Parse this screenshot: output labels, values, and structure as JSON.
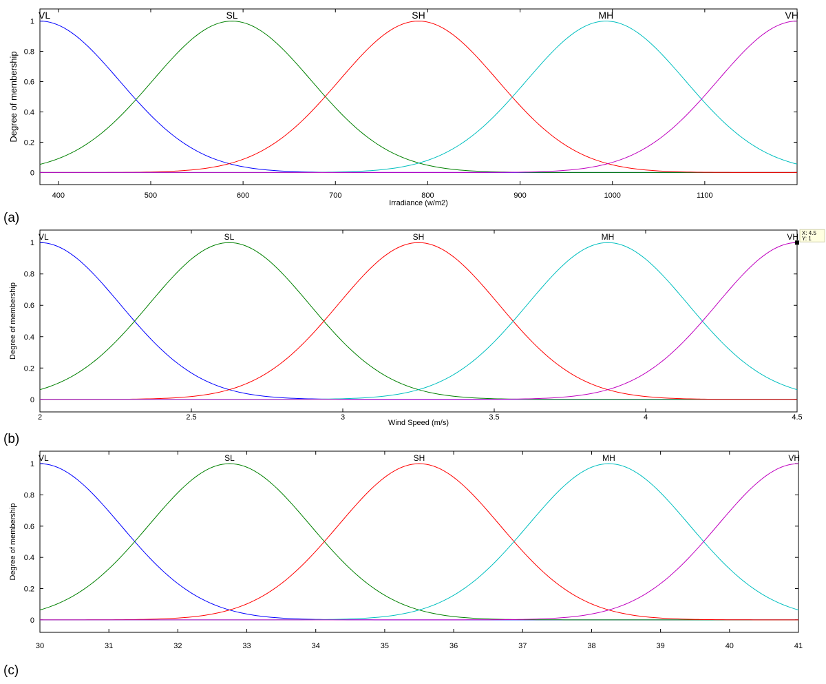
{
  "chart_data": [
    {
      "type": "line",
      "panel_label": "(a)",
      "xlabel": "Irradiance (w/m2)",
      "ylabel": "Degree of membership",
      "xlim": [
        380,
        1200
      ],
      "ylim": [
        -0.08,
        1.08
      ],
      "xticks": [
        400,
        500,
        600,
        700,
        800,
        900,
        1000,
        1100
      ],
      "yticks": [
        0,
        0.2,
        0.4,
        0.6,
        0.8,
        1
      ],
      "grid": false,
      "mf_type": "gaussian",
      "series": [
        {
          "name": "VL",
          "center": 380,
          "sigma": 86,
          "color": "#0000ff"
        },
        {
          "name": "SL",
          "center": 588,
          "sigma": 86,
          "color": "#008000"
        },
        {
          "name": "SH",
          "center": 790,
          "sigma": 86,
          "color": "#ff0000"
        },
        {
          "name": "MH",
          "center": 993,
          "sigma": 86,
          "color": "#00bfbf"
        },
        {
          "name": "VH",
          "center": 1200,
          "sigma": 86,
          "color": "#bf00bf"
        }
      ]
    },
    {
      "type": "line",
      "panel_label": "(b)",
      "xlabel": "Wind Speed (m/s)",
      "ylabel": "Degree of membership",
      "xlim": [
        2,
        4.5
      ],
      "ylim": [
        -0.08,
        1.08
      ],
      "xticks": [
        2,
        2.5,
        3,
        3.5,
        4,
        4.5
      ],
      "yticks": [
        0,
        0.2,
        0.4,
        0.6,
        0.8,
        1
      ],
      "grid": false,
      "mf_type": "gaussian",
      "series": [
        {
          "name": "VL",
          "center": 2,
          "sigma": 0.265,
          "color": "#0000ff"
        },
        {
          "name": "SL",
          "center": 2.625,
          "sigma": 0.265,
          "color": "#008000"
        },
        {
          "name": "SH",
          "center": 3.25,
          "sigma": 0.265,
          "color": "#ff0000"
        },
        {
          "name": "MH",
          "center": 3.875,
          "sigma": 0.265,
          "color": "#00bfbf"
        },
        {
          "name": "VH",
          "center": 4.5,
          "sigma": 0.265,
          "color": "#bf00bf"
        }
      ],
      "datatip": {
        "x": 4.5,
        "y": 1,
        "line1": "X: 4.5",
        "line2": "Y: 1"
      }
    },
    {
      "type": "line",
      "panel_label": "(c)",
      "xlabel": "",
      "ylabel": "Degree of membership",
      "xlim": [
        30,
        41
      ],
      "ylim": [
        -0.08,
        1.08
      ],
      "xticks": [
        30,
        31,
        32,
        33,
        34,
        35,
        36,
        37,
        38,
        39,
        40,
        41
      ],
      "yticks": [
        0,
        0.2,
        0.4,
        0.6,
        0.8,
        1
      ],
      "grid": false,
      "mf_type": "gaussian",
      "series": [
        {
          "name": "VL",
          "center": 30,
          "sigma": 1.17,
          "color": "#0000ff"
        },
        {
          "name": "SL",
          "center": 32.75,
          "sigma": 1.17,
          "color": "#008000"
        },
        {
          "name": "SH",
          "center": 35.5,
          "sigma": 1.17,
          "color": "#ff0000"
        },
        {
          "name": "MH",
          "center": 38.25,
          "sigma": 1.17,
          "color": "#00bfbf"
        },
        {
          "name": "VH",
          "center": 41,
          "sigma": 1.17,
          "color": "#bf00bf"
        }
      ]
    }
  ]
}
